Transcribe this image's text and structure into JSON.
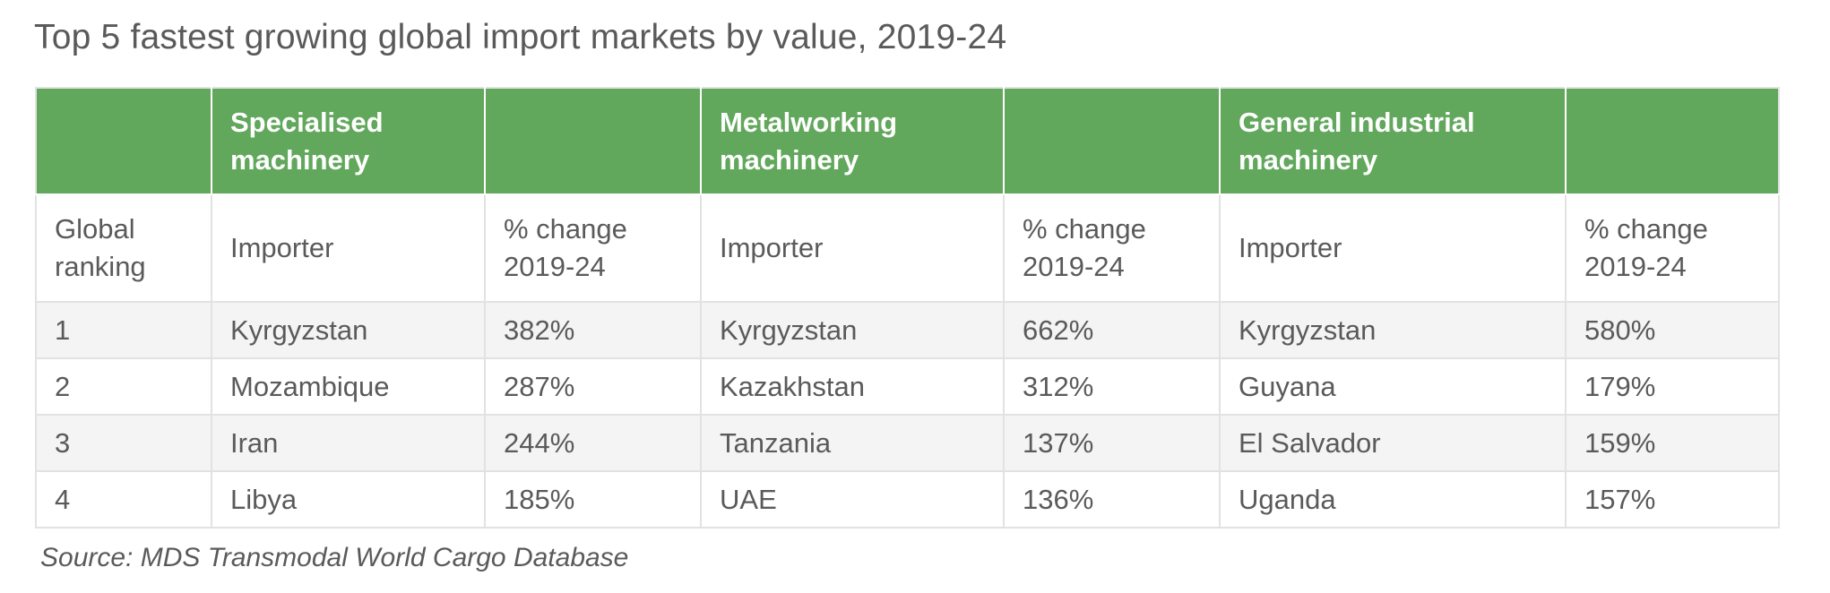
{
  "title": "Top 5 fastest growing global import markets by value, 2019-24",
  "header": {
    "cols": [
      "",
      "Specialised machinery",
      "",
      "Metalworking machinery",
      "",
      "General industrial machinery",
      ""
    ]
  },
  "subheader": {
    "cols": [
      "Global ranking",
      "Importer",
      "% change 2019-24",
      "Importer",
      "% change 2019-24",
      "Importer",
      "% change 2019-24"
    ]
  },
  "rows": [
    {
      "rank": "1",
      "spec_importer": "Kyrgyzstan",
      "spec_change": "382%",
      "metal_importer": "Kyrgyzstan",
      "metal_change": "662%",
      "gen_importer": "Kyrgyzstan",
      "gen_change": "580%"
    },
    {
      "rank": "2",
      "spec_importer": "Mozambique",
      "spec_change": "287%",
      "metal_importer": "Kazakhstan",
      "metal_change": "312%",
      "gen_importer": "Guyana",
      "gen_change": "179%"
    },
    {
      "rank": "3",
      "spec_importer": "Iran",
      "spec_change": "244%",
      "metal_importer": "Tanzania",
      "metal_change": "137%",
      "gen_importer": "El Salvador",
      "gen_change": "159%"
    },
    {
      "rank": "4",
      "spec_importer": "Libya",
      "spec_change": "185%",
      "metal_importer": "UAE",
      "metal_change": "136%",
      "gen_importer": "Uganda",
      "gen_change": "157%"
    }
  ],
  "source": "Source: MDS Transmodal World Cargo Database",
  "colors": {
    "header_green": "#62a85c",
    "stripe": "#f4f4f4",
    "border": "#e2e2e2"
  }
}
